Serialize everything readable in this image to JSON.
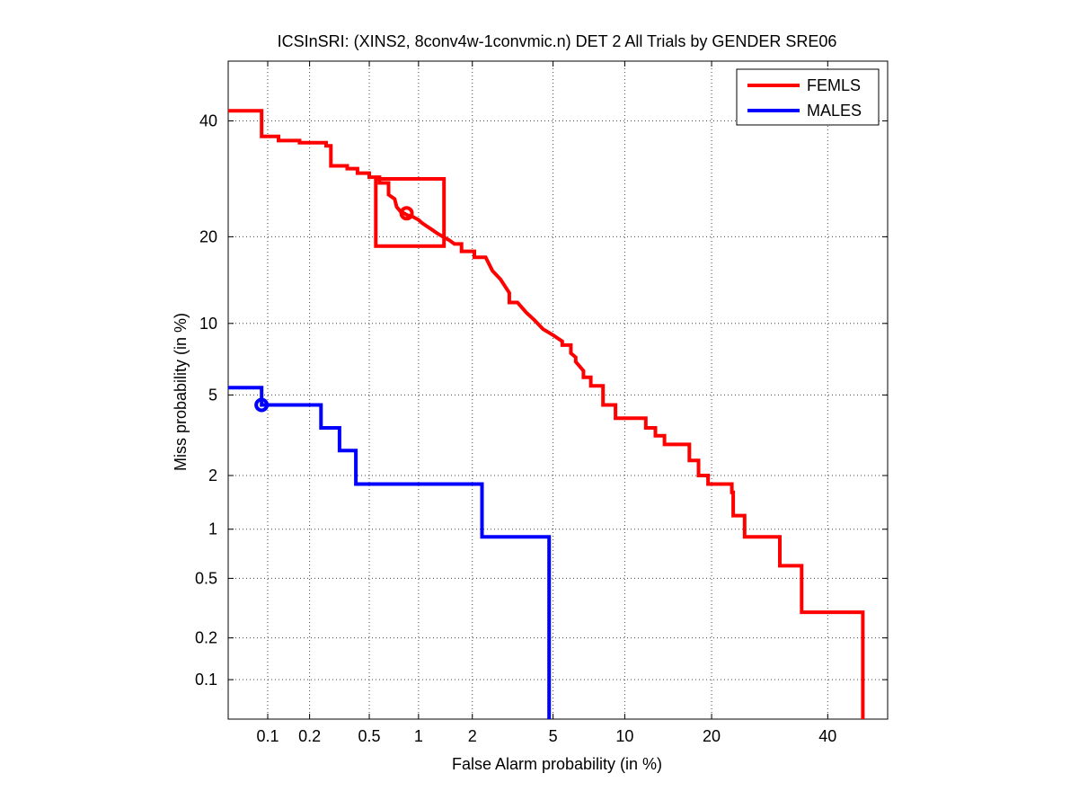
{
  "chart_data": {
    "type": "line",
    "subtype": "DET curve (normal-deviate scaled axes)",
    "title": "ICSInSRI: (XINS2, 8conv4w-1convmic.n) DET 2 All Trials by GENDER SRE06",
    "xlabel": "False Alarm probability (in %)",
    "ylabel": "Miss probability (in %)",
    "xlim": [
      0.05,
      52
    ],
    "ylim": [
      0.05,
      52
    ],
    "xticks": [
      0.1,
      0.2,
      0.5,
      1,
      2,
      5,
      10,
      20,
      40
    ],
    "xtick_labels": [
      "0.1",
      "0.2",
      "0.5",
      "1",
      "2",
      "5",
      "10",
      "20",
      "40"
    ],
    "yticks": [
      0.1,
      0.2,
      0.5,
      1,
      2,
      5,
      10,
      20,
      40
    ],
    "ytick_labels": [
      "0.1",
      "0.2",
      "0.5",
      "1",
      "2",
      "5",
      "10",
      "20",
      "40"
    ],
    "grid": true,
    "legend_position": "top-right",
    "series": [
      {
        "name": "FEMLS",
        "color": "#ff0000",
        "x": [
          0.05,
          0.09,
          0.09,
          0.12,
          0.12,
          0.17,
          0.17,
          0.26,
          0.26,
          0.28,
          0.28,
          0.36,
          0.36,
          0.42,
          0.42,
          0.5,
          0.5,
          0.58,
          0.58,
          0.66,
          0.66,
          0.72,
          0.74,
          0.78,
          0.82,
          0.86,
          0.92,
          1.0,
          1.05,
          1.12,
          1.2,
          1.28,
          1.38,
          1.5,
          1.6,
          1.75,
          1.75,
          2.05,
          2.05,
          2.35,
          2.55,
          2.55,
          2.8,
          2.8,
          3.1,
          3.1,
          3.4,
          3.75,
          3.75,
          4.1,
          4.5,
          5.0,
          5.5,
          5.5,
          6.0,
          6.0,
          6.3,
          6.3,
          6.8,
          6.8,
          7.3,
          7.3,
          8.2,
          8.2,
          9.2,
          9.2,
          12.0,
          12.0,
          13.0,
          13.0,
          14.0,
          14.0,
          17.0,
          17.0,
          18.2,
          18.2,
          19.5,
          19.5,
          23.0,
          23.0,
          23.2,
          23.2,
          25.0,
          25.0,
          31.0,
          31.0,
          35.0,
          35.0,
          47.0,
          47.0
        ],
        "y": [
          42,
          42,
          37,
          37,
          36.2,
          36.2,
          35.8,
          35.8,
          35.2,
          35.2,
          31.5,
          31.5,
          31,
          31,
          30.2,
          30.2,
          29.5,
          29.5,
          28.5,
          28.5,
          26.5,
          25.8,
          24.5,
          23.8,
          23.5,
          23.2,
          23,
          22.5,
          22,
          21.5,
          21,
          20.5,
          20,
          19.5,
          19,
          19,
          18,
          18,
          17.2,
          17.2,
          15.5,
          15.5,
          14.5,
          14.5,
          13,
          12,
          12,
          11,
          11,
          10.3,
          9.5,
          9.0,
          8.5,
          8.2,
          8.2,
          7.6,
          7.3,
          7.0,
          6.4,
          6.0,
          6.0,
          5.5,
          5.5,
          4.5,
          4.5,
          3.9,
          3.9,
          3.5,
          3.5,
          3.2,
          3.2,
          2.9,
          2.9,
          2.4,
          2.4,
          2.0,
          2.0,
          1.8,
          1.8,
          1.62,
          1.62,
          1.2,
          1.2,
          0.9,
          0.9,
          0.6,
          0.6,
          0.3,
          0.3,
          0.05
        ]
      },
      {
        "name": "MALES",
        "color": "#0000ff",
        "x": [
          0.05,
          0.09,
          0.09,
          0.24,
          0.24,
          0.32,
          0.32,
          0.41,
          0.41,
          2.25,
          2.25,
          4.8,
          4.8
        ],
        "y": [
          5.4,
          5.4,
          4.5,
          4.5,
          3.5,
          3.5,
          2.7,
          2.7,
          1.8,
          1.8,
          0.9,
          0.9,
          0.05
        ]
      }
    ],
    "markers": [
      {
        "series": "FEMLS",
        "shape": "circle",
        "x": 0.85,
        "y": 23.5
      },
      {
        "series": "FEMLS",
        "shape": "square",
        "x_range": [
          0.55,
          1.4
        ],
        "y_range": [
          18.7,
          29.2
        ]
      },
      {
        "series": "MALES",
        "shape": "circle",
        "x": 0.09,
        "y": 4.5
      }
    ]
  }
}
